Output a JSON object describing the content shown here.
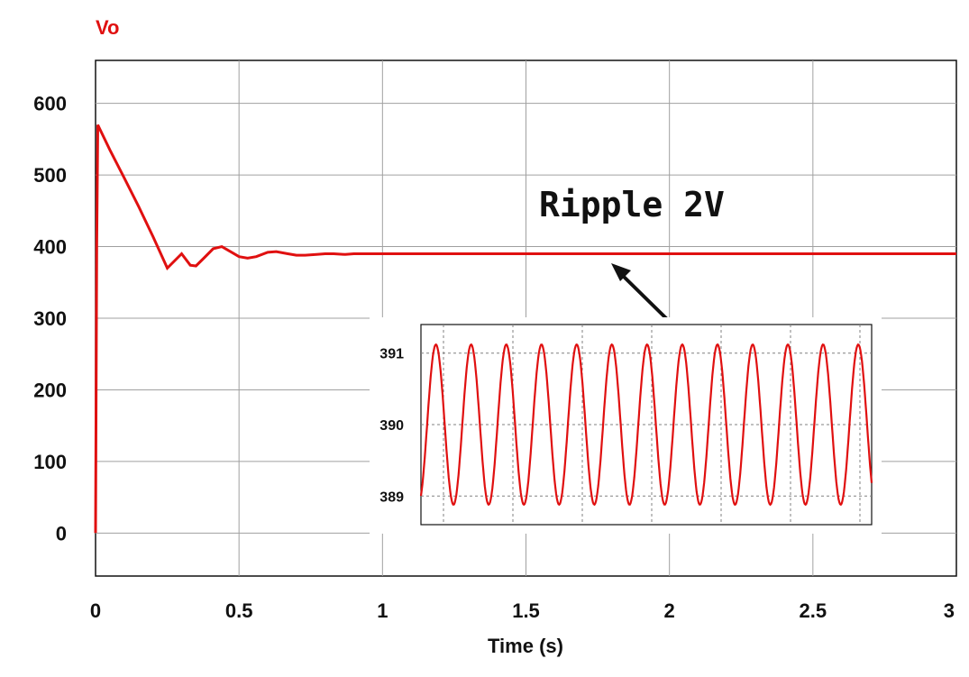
{
  "chart_data": [
    {
      "type": "line",
      "title": "",
      "xlabel": "Time (s)",
      "ylabel": "",
      "xlim": [
        0,
        3
      ],
      "ylim": [
        -60,
        660
      ],
      "x_ticks": [
        "0",
        "0.5",
        "1",
        "1.5",
        "2",
        "2.5",
        "3"
      ],
      "x_tick_values": [
        0,
        0.5,
        1,
        1.5,
        2,
        2.5,
        3
      ],
      "y_ticks": [
        "0",
        "100",
        "200",
        "300",
        "400",
        "500",
        "600"
      ],
      "y_tick_values": [
        0,
        100,
        200,
        300,
        400,
        500,
        600
      ],
      "grid": true,
      "legend": "top-left",
      "series": [
        {
          "name": "Vo",
          "color": "#e01010",
          "x": [
            0,
            0.004,
            0.008,
            0.05,
            0.1,
            0.15,
            0.2,
            0.25,
            0.3,
            0.33,
            0.35,
            0.38,
            0.41,
            0.44,
            0.47,
            0.5,
            0.53,
            0.56,
            0.6,
            0.63,
            0.67,
            0.7,
            0.73,
            0.77,
            0.8,
            0.83,
            0.87,
            0.9,
            0.95,
            1.0,
            1.5,
            2.0,
            2.5,
            3.0
          ],
          "y": [
            0,
            400,
            570,
            535,
            496,
            456,
            414,
            370,
            390,
            374,
            373,
            385,
            397,
            400,
            393,
            386,
            384,
            386,
            392,
            393,
            390,
            388,
            388,
            389,
            390,
            390,
            389,
            390,
            390,
            390,
            390,
            390,
            390,
            390
          ]
        }
      ]
    },
    {
      "type": "line",
      "title": "",
      "xlabel": "",
      "ylabel": "",
      "ylim": [
        388.6,
        391.4
      ],
      "y_ticks": [
        "389",
        "390",
        "391"
      ],
      "y_tick_values": [
        389,
        390,
        391
      ],
      "grid": true,
      "series": [
        {
          "name": "",
          "color": "#e01010",
          "waveform": "sine",
          "cycles": 13,
          "mean": 390,
          "amplitude": 1.0
        }
      ]
    }
  ],
  "annotations": {
    "ripple": "Ripple 2V"
  },
  "colors": {
    "series": "#e01010",
    "grid": "#a0a0a0",
    "axis": "#111111",
    "inset_grid": "#808080"
  }
}
